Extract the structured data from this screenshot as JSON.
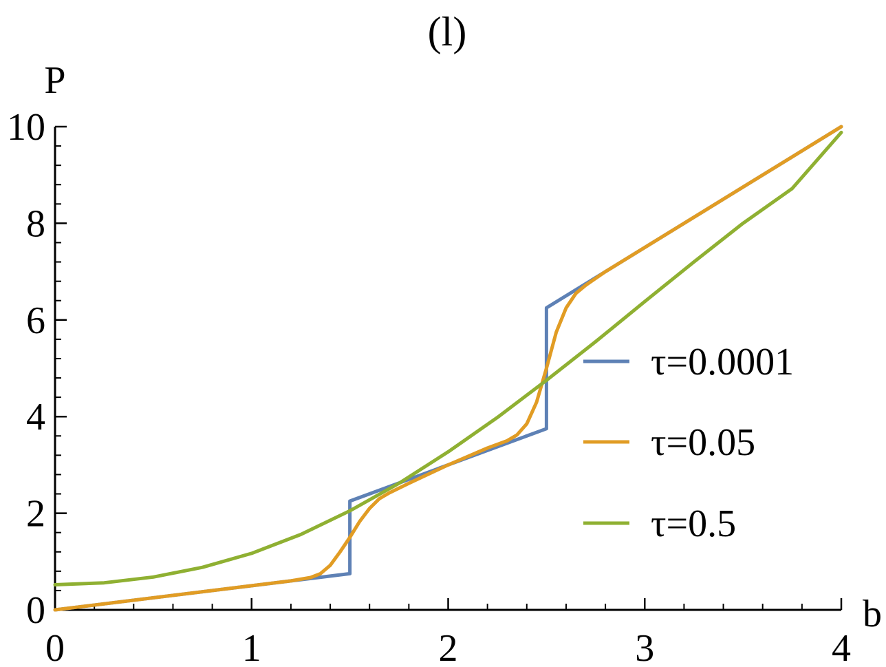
{
  "chart_data": {
    "type": "line",
    "title": "(l)",
    "xlabel": "b",
    "ylabel": "P",
    "xlim": [
      0,
      4
    ],
    "ylim": [
      0,
      10
    ],
    "x_ticks": [
      0,
      1,
      2,
      3,
      4
    ],
    "x_tick_labels": [
      "0",
      "1",
      "2",
      "3",
      "4"
    ],
    "y_ticks": [
      0,
      2,
      4,
      6,
      8,
      10
    ],
    "y_tick_labels": [
      "0",
      "2",
      "4",
      "6",
      "8",
      "10"
    ],
    "x_minor_step": 0.2,
    "y_minor_step": 0.4,
    "grid": false,
    "legend_position": "right",
    "series": [
      {
        "name": "τ=0.0001",
        "color": "#5E81B5",
        "points": [
          [
            0,
            0
          ],
          [
            1.5,
            0.75
          ],
          [
            1.5,
            2.25
          ],
          [
            2.5,
            3.75
          ],
          [
            2.5,
            6.25
          ],
          [
            4,
            10
          ]
        ]
      },
      {
        "name": "τ=0.05",
        "color": "#E19C24",
        "points": [
          [
            0,
            0
          ],
          [
            1.0,
            0.5
          ],
          [
            1.2,
            0.6
          ],
          [
            1.3,
            0.67
          ],
          [
            1.35,
            0.75
          ],
          [
            1.4,
            0.92
          ],
          [
            1.45,
            1.2
          ],
          [
            1.5,
            1.5
          ],
          [
            1.55,
            1.83
          ],
          [
            1.6,
            2.1
          ],
          [
            1.65,
            2.3
          ],
          [
            1.7,
            2.42
          ],
          [
            1.8,
            2.62
          ],
          [
            2.0,
            3.0
          ],
          [
            2.2,
            3.35
          ],
          [
            2.3,
            3.5
          ],
          [
            2.35,
            3.62
          ],
          [
            2.4,
            3.85
          ],
          [
            2.45,
            4.3
          ],
          [
            2.5,
            5.0
          ],
          [
            2.55,
            5.75
          ],
          [
            2.6,
            6.25
          ],
          [
            2.65,
            6.55
          ],
          [
            2.7,
            6.72
          ],
          [
            2.8,
            7.0
          ],
          [
            3.0,
            7.5
          ],
          [
            3.5,
            8.75
          ],
          [
            4.0,
            10.0
          ]
        ]
      },
      {
        "name": "τ=0.5",
        "color": "#8FB032",
        "points": [
          [
            0,
            0.52
          ],
          [
            0.25,
            0.56
          ],
          [
            0.5,
            0.68
          ],
          [
            0.75,
            0.88
          ],
          [
            1.0,
            1.17
          ],
          [
            1.25,
            1.56
          ],
          [
            1.5,
            2.05
          ],
          [
            1.75,
            2.62
          ],
          [
            2.0,
            3.27
          ],
          [
            2.25,
            3.98
          ],
          [
            2.5,
            4.75
          ],
          [
            2.75,
            5.55
          ],
          [
            3.0,
            6.38
          ],
          [
            3.25,
            7.2
          ],
          [
            3.5,
            8.0
          ],
          [
            3.75,
            8.72
          ],
          [
            4.0,
            9.88
          ]
        ]
      }
    ]
  }
}
